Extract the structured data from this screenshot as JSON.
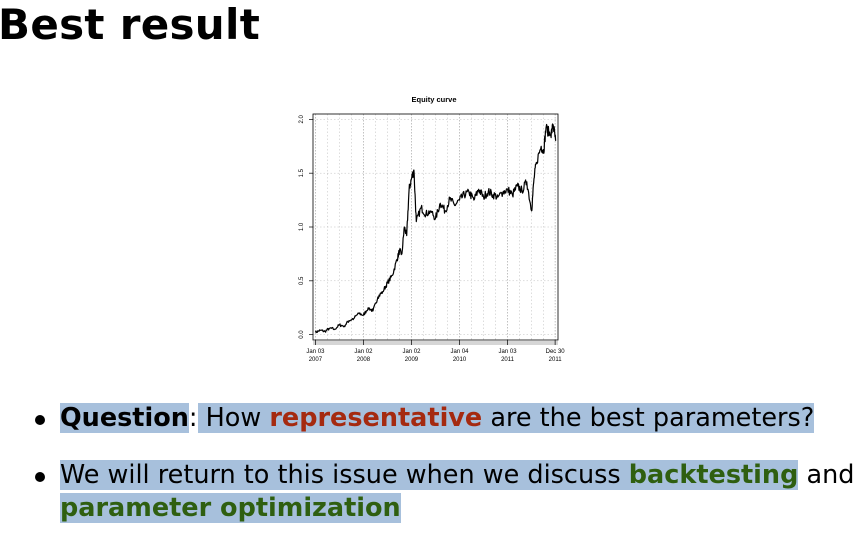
{
  "slide": {
    "title": "Best result"
  },
  "chart_data": {
    "type": "line",
    "title": "Equity curve",
    "xlabel": "",
    "ylabel": "",
    "x_tick_labels": [
      {
        "top": "Jan 03",
        "bottom": "2007"
      },
      {
        "top": "Jan 02",
        "bottom": "2008"
      },
      {
        "top": "Jan 02",
        "bottom": "2009"
      },
      {
        "top": "Jan 04",
        "bottom": "2010"
      },
      {
        "top": "Jan 03",
        "bottom": "2011"
      },
      {
        "top": "Dec 30",
        "bottom": "2011"
      }
    ],
    "y_ticks": [
      0.0,
      0.5,
      1.0,
      1.5,
      2.0
    ],
    "y_tick_labels": [
      "0.0",
      "0.5",
      "1.0",
      "1.5",
      "2.0"
    ],
    "ylim": [
      0.0,
      2.0
    ],
    "grid": true,
    "series": [
      {
        "x": [
          2007.0,
          2007.1,
          2007.2,
          2007.3,
          2007.4,
          2007.5,
          2007.6,
          2007.7,
          2007.8,
          2007.9,
          2008.0,
          2008.1,
          2008.2,
          2008.3,
          2008.4,
          2008.5,
          2008.6,
          2008.7,
          2008.75,
          2008.8,
          2008.85,
          2008.9,
          2008.95,
          2009.0,
          2009.05,
          2009.1,
          2009.2,
          2009.3,
          2009.4,
          2009.5,
          2009.6,
          2009.7,
          2009.8,
          2009.9,
          2010.0,
          2010.1,
          2010.2,
          2010.3,
          2010.4,
          2010.5,
          2010.6,
          2010.7,
          2010.8,
          2010.9,
          2011.0,
          2011.1,
          2011.2,
          2011.3,
          2011.4,
          2011.5,
          2011.55,
          2011.6,
          2011.7,
          2011.75,
          2011.8,
          2011.9,
          2011.95,
          2012.0
        ],
        "y": [
          0.02,
          0.04,
          0.03,
          0.06,
          0.05,
          0.09,
          0.08,
          0.13,
          0.15,
          0.2,
          0.18,
          0.25,
          0.22,
          0.35,
          0.4,
          0.48,
          0.55,
          0.7,
          0.78,
          0.75,
          1.0,
          0.92,
          1.35,
          1.45,
          1.53,
          1.05,
          1.18,
          1.12,
          1.15,
          1.08,
          1.22,
          1.15,
          1.26,
          1.2,
          1.25,
          1.3,
          1.32,
          1.25,
          1.35,
          1.28,
          1.33,
          1.3,
          1.28,
          1.32,
          1.35,
          1.3,
          1.38,
          1.34,
          1.42,
          1.15,
          1.45,
          1.6,
          1.75,
          1.7,
          1.92,
          1.85,
          1.95,
          1.8
        ]
      }
    ]
  },
  "bullets": {
    "item1": {
      "question_label": "Question",
      "colon": ":",
      "text_how": " How ",
      "representative": "representative",
      "text_rest": " are the best parameters?"
    },
    "item2": {
      "text_lead": "We will return to this issue when we discuss ",
      "backtesting": "backtesting",
      "text_and": " and ",
      "parameter_optimization": "parameter optimization"
    }
  },
  "colors": {
    "highlight": "#a7c0dc",
    "emphasis_red": "#a52a10",
    "emphasis_green": "#2f5f10"
  }
}
